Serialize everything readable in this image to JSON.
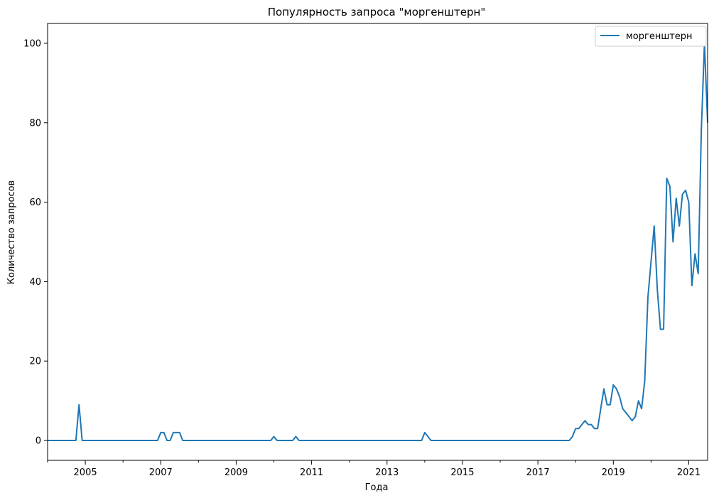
{
  "chart_data": {
    "type": "line",
    "title": "Популярность запроса \"моргенштерн\"",
    "xlabel": "Года",
    "ylabel": "Количество запросов",
    "xlim": [
      "2004-01",
      "2021-07"
    ],
    "ylim": [
      -5,
      105
    ],
    "grid": false,
    "legend_position": "top-right",
    "x_ticks": [
      "2005",
      "2007",
      "2009",
      "2011",
      "2013",
      "2015",
      "2017",
      "2019",
      "2021"
    ],
    "y_ticks": [
      0,
      20,
      40,
      60,
      80,
      100
    ],
    "series": [
      {
        "name": "моргенштерн",
        "color": "#1f77b4",
        "points": [
          [
            "2004-01",
            0
          ],
          [
            "2004-10",
            0
          ],
          [
            "2004-11",
            9
          ],
          [
            "2004-12",
            0
          ],
          [
            "2006-12",
            0
          ],
          [
            "2007-01",
            2
          ],
          [
            "2007-02",
            2
          ],
          [
            "2007-03",
            0
          ],
          [
            "2007-04",
            0
          ],
          [
            "2007-05",
            2
          ],
          [
            "2007-06",
            2
          ],
          [
            "2007-07",
            2
          ],
          [
            "2007-08",
            0
          ],
          [
            "2009-12",
            0
          ],
          [
            "2010-01",
            1
          ],
          [
            "2010-02",
            0
          ],
          [
            "2010-07",
            0
          ],
          [
            "2010-08",
            1
          ],
          [
            "2010-09",
            0
          ],
          [
            "2013-12",
            0
          ],
          [
            "2014-01",
            2
          ],
          [
            "2014-03",
            0
          ],
          [
            "2017-11",
            0
          ],
          [
            "2017-12",
            1
          ],
          [
            "2018-01",
            3
          ],
          [
            "2018-02",
            3
          ],
          [
            "2018-03",
            4
          ],
          [
            "2018-04",
            5
          ],
          [
            "2018-05",
            4
          ],
          [
            "2018-06",
            4
          ],
          [
            "2018-07",
            3
          ],
          [
            "2018-08",
            3
          ],
          [
            "2018-09",
            8
          ],
          [
            "2018-10",
            13
          ],
          [
            "2018-11",
            9
          ],
          [
            "2018-12",
            9
          ],
          [
            "2019-01",
            14
          ],
          [
            "2019-02",
            13
          ],
          [
            "2019-03",
            11
          ],
          [
            "2019-04",
            8
          ],
          [
            "2019-05",
            7
          ],
          [
            "2019-06",
            6
          ],
          [
            "2019-07",
            5
          ],
          [
            "2019-08",
            6
          ],
          [
            "2019-09",
            10
          ],
          [
            "2019-10",
            8
          ],
          [
            "2019-11",
            15
          ],
          [
            "2019-12",
            36
          ],
          [
            "2020-01",
            45
          ],
          [
            "2020-02",
            54
          ],
          [
            "2020-03",
            38
          ],
          [
            "2020-04",
            28
          ],
          [
            "2020-05",
            28
          ],
          [
            "2020-06",
            66
          ],
          [
            "2020-07",
            64
          ],
          [
            "2020-08",
            50
          ],
          [
            "2020-09",
            61
          ],
          [
            "2020-10",
            54
          ],
          [
            "2020-11",
            62
          ],
          [
            "2020-12",
            63
          ],
          [
            "2021-01",
            60
          ],
          [
            "2021-02",
            39
          ],
          [
            "2021-03",
            47
          ],
          [
            "2021-04",
            42
          ],
          [
            "2021-05",
            78
          ],
          [
            "2021-06",
            100
          ],
          [
            "2021-07",
            80
          ]
        ]
      }
    ]
  }
}
